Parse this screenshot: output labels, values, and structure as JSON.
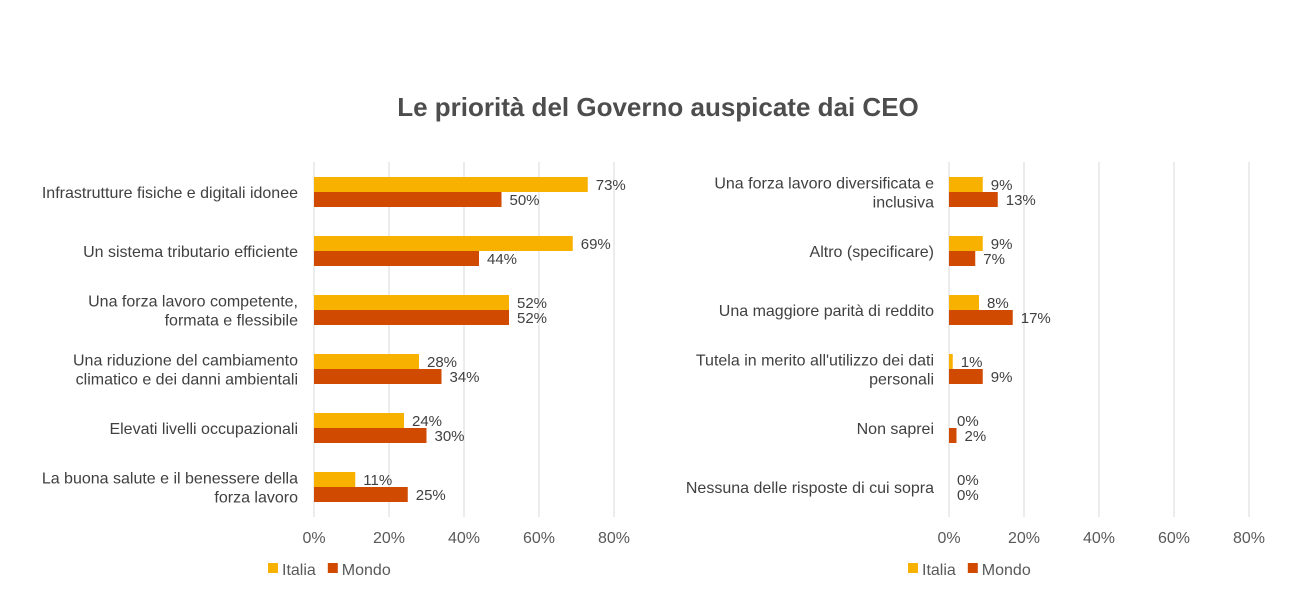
{
  "title": "Le priorità del Governo auspicate dai CEO",
  "colors": {
    "Italia": "#F9B100",
    "Mondo": "#D04A02",
    "grid": "#d9d9d9"
  },
  "chart_data": [
    {
      "type": "bar",
      "orientation": "horizontal",
      "categories": [
        "Infrastrutture fisiche e digitali idonee",
        "Un sistema tributario efficiente",
        "Una forza lavoro competente, formata e flessibile",
        "Una riduzione del cambiamento climatico e dei danni ambientali",
        "Elevati livelli occupazionali",
        "La buona salute e il benessere della forza lavoro"
      ],
      "category_lines": [
        [
          "Infrastrutture fisiche e digitali idonee"
        ],
        [
          "Un sistema tributario efficiente"
        ],
        [
          "Una forza lavoro competente,",
          "formata e flessibile"
        ],
        [
          "Una riduzione del cambiamento",
          "climatico e dei danni ambientali"
        ],
        [
          "Elevati livelli occupazionali"
        ],
        [
          "La buona salute e il benessere della",
          "forza lavoro"
        ]
      ],
      "series": [
        {
          "name": "Italia",
          "values": [
            73,
            69,
            52,
            28,
            24,
            11
          ]
        },
        {
          "name": "Mondo",
          "values": [
            50,
            44,
            52,
            34,
            30,
            25
          ]
        }
      ],
      "xlim": [
        0,
        80
      ],
      "ticks": [
        "0%",
        "20%",
        "40%",
        "60%",
        "80%"
      ],
      "tick_values": [
        0,
        20,
        40,
        60,
        80
      ],
      "unit": "%",
      "legend": "bottom-left",
      "grid": true
    },
    {
      "type": "bar",
      "orientation": "horizontal",
      "categories": [
        "Una forza lavoro diversificata e inclusiva",
        "Altro (specificare)",
        "Una maggiore parità di reddito",
        "Tutela in merito all'utilizzo dei dati personali",
        "Non saprei",
        "Nessuna delle risposte di cui sopra"
      ],
      "category_lines": [
        [
          "Una forza lavoro diversificata e",
          "inclusiva"
        ],
        [
          "Altro (specificare)"
        ],
        [
          "Una maggiore parità di reddito"
        ],
        [
          "Tutela in merito all'utilizzo dei dati",
          "personali"
        ],
        [
          "Non saprei"
        ],
        [
          "Nessuna delle risposte di cui sopra"
        ]
      ],
      "series": [
        {
          "name": "Italia",
          "values": [
            9,
            9,
            8,
            1,
            0,
            0
          ]
        },
        {
          "name": "Mondo",
          "values": [
            13,
            7,
            17,
            9,
            2,
            0
          ]
        }
      ],
      "xlim": [
        0,
        80
      ],
      "ticks": [
        "0%",
        "20%",
        "40%",
        "60%",
        "80%"
      ],
      "tick_values": [
        0,
        20,
        40,
        60,
        80
      ],
      "unit": "%",
      "legend": "bottom-left",
      "grid": true
    }
  ]
}
